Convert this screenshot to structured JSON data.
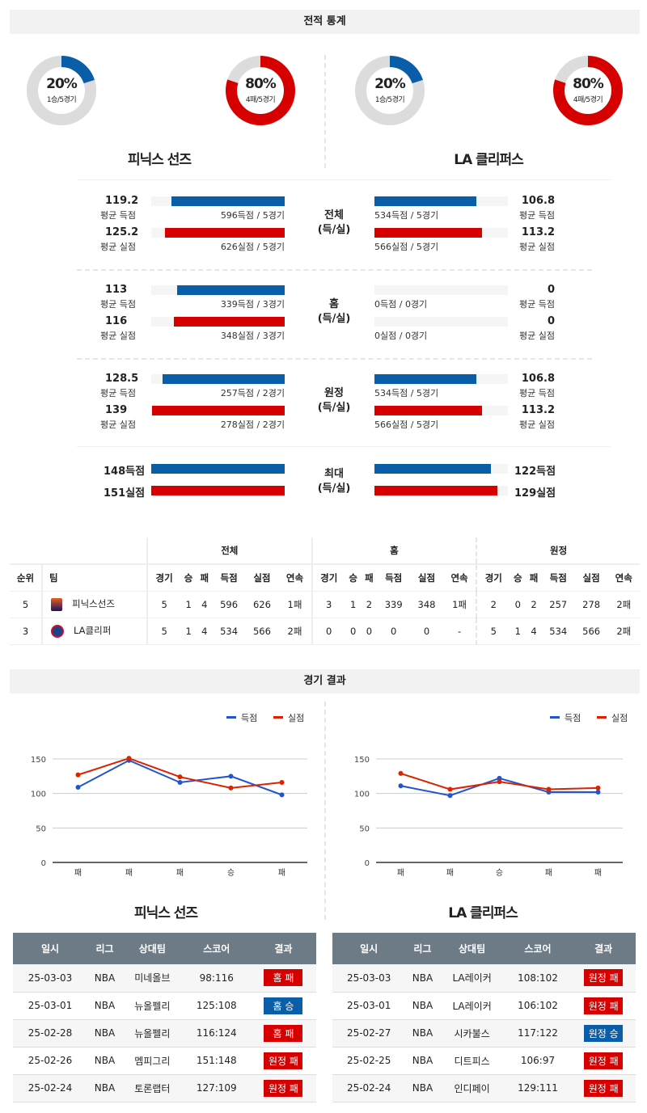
{
  "colors": {
    "score": "#0a5ea8",
    "lost": "#d60000",
    "track": "#dcdcdc",
    "header": "#6d7b87"
  },
  "section1": {
    "title": "전적 통계"
  },
  "teams": [
    {
      "name": "피닉스 선즈",
      "win": {
        "pct": "20%",
        "sub": "1승/5경기",
        "value": 20
      },
      "loss": {
        "pct": "80%",
        "sub": "4패/5경기",
        "value": 80
      }
    },
    {
      "name": "LA 클리퍼스",
      "win": {
        "pct": "20%",
        "sub": "1승/5경기",
        "value": 20
      },
      "loss": {
        "pct": "80%",
        "sub": "4패/5경기",
        "value": 80
      }
    }
  ],
  "stats": [
    {
      "center": [
        "전체",
        "(득/실)"
      ],
      "left": [
        {
          "val": "119.2",
          "lab": "평균 득점",
          "sub": "596득점 / 5경기",
          "v": 119.2
        },
        {
          "val": "125.2",
          "lab": "평균 실점",
          "sub": "626실점 / 5경기",
          "v": 125.2
        }
      ],
      "right": [
        {
          "val": "106.8",
          "lab": "평균 득점",
          "sub": "534득점 / 5경기",
          "v": 106.8
        },
        {
          "val": "113.2",
          "lab": "평균 실점",
          "sub": "566실점 / 5경기",
          "v": 113.2
        }
      ]
    },
    {
      "center": [
        "홈",
        "(득/실)"
      ],
      "left": [
        {
          "val": "113",
          "lab": "평균 득점",
          "sub": "339득점 / 3경기",
          "v": 113
        },
        {
          "val": "116",
          "lab": "평균 실점",
          "sub": "348실점 / 3경기",
          "v": 116
        }
      ],
      "right": [
        {
          "val": "0",
          "lab": "평균 득점",
          "sub": "0득점 / 0경기",
          "v": 0
        },
        {
          "val": "0",
          "lab": "평균 실점",
          "sub": "0실점 / 0경기",
          "v": 0
        }
      ]
    },
    {
      "center": [
        "원정",
        "(득/실)"
      ],
      "left": [
        {
          "val": "128.5",
          "lab": "평균 득점",
          "sub": "257득점 / 2경기",
          "v": 128.5
        },
        {
          "val": "139",
          "lab": "평균 실점",
          "sub": "278실점 / 2경기",
          "v": 139
        }
      ],
      "right": [
        {
          "val": "106.8",
          "lab": "평균 득점",
          "sub": "534득점 / 5경기",
          "v": 106.8
        },
        {
          "val": "113.2",
          "lab": "평균 실점",
          "sub": "566실점 / 5경기",
          "v": 113.2
        }
      ]
    }
  ],
  "max": {
    "center": [
      "최대",
      "(득/실)"
    ],
    "left": [
      {
        "val": "148득점",
        "v": 148
      },
      {
        "val": "151실점",
        "v": 151
      }
    ],
    "right": [
      {
        "val": "122득점",
        "v": 122
      },
      {
        "val": "129실점",
        "v": 129
      }
    ]
  },
  "standings": {
    "groups": [
      "전체",
      "홈",
      "원정"
    ],
    "headers": [
      "순위",
      "팀",
      "경기",
      "승",
      "패",
      "득점",
      "실점",
      "연속",
      "경기",
      "승",
      "패",
      "득점",
      "실점",
      "연속",
      "경기",
      "승",
      "패",
      "득점",
      "실점",
      "연속"
    ],
    "rows": [
      [
        "5",
        "피닉스선즈",
        "5",
        "1",
        "4",
        "596",
        "626",
        "1패",
        "3",
        "1",
        "2",
        "339",
        "348",
        "1패",
        "2",
        "0",
        "2",
        "257",
        "278",
        "2패"
      ],
      [
        "3",
        "LA클리퍼",
        "5",
        "1",
        "4",
        "534",
        "566",
        "2패",
        "0",
        "0",
        "0",
        "0",
        "0",
        "-",
        "5",
        "1",
        "4",
        "534",
        "566",
        "2패"
      ]
    ]
  },
  "section2": {
    "title": "경기 결과"
  },
  "chart_data": [
    {
      "type": "line",
      "categories": [
        "패",
        "패",
        "패",
        "승",
        "패"
      ],
      "ylim": [
        0,
        150
      ],
      "yticks": [
        0,
        50,
        100,
        150
      ],
      "legend": "top-right",
      "grid": true,
      "series": [
        {
          "name": "득점",
          "color": "#2255cc",
          "values": [
            109,
            148,
            116,
            125,
            98
          ]
        },
        {
          "name": "실점",
          "color": "#dd2200",
          "values": [
            127,
            151,
            124,
            108,
            116
          ]
        }
      ]
    },
    {
      "type": "line",
      "categories": [
        "패",
        "패",
        "승",
        "패",
        "패"
      ],
      "ylim": [
        0,
        150
      ],
      "yticks": [
        0,
        50,
        100,
        150
      ],
      "legend": "top-right",
      "grid": true,
      "series": [
        {
          "name": "득점",
          "color": "#2255cc",
          "values": [
            111,
            97,
            122,
            102,
            102
          ]
        },
        {
          "name": "실점",
          "color": "#dd2200",
          "values": [
            129,
            106,
            117,
            106,
            108
          ]
        }
      ]
    }
  ],
  "results": {
    "headers": [
      "일시",
      "리그",
      "상대팀",
      "스코어",
      "결과"
    ],
    "tables": [
      [
        [
          "25-03-03",
          "NBA",
          "미네올브",
          "98:116",
          "홈 패"
        ],
        [
          "25-03-01",
          "NBA",
          "뉴올펠리",
          "125:108",
          "홈 승"
        ],
        [
          "25-02-28",
          "NBA",
          "뉴올펠리",
          "116:124",
          "홈 패"
        ],
        [
          "25-02-26",
          "NBA",
          "멤피그리",
          "151:148",
          "원정 패"
        ],
        [
          "25-02-24",
          "NBA",
          "토론랩터",
          "127:109",
          "원정 패"
        ]
      ],
      [
        [
          "25-03-03",
          "NBA",
          "LA레이커",
          "108:102",
          "원정 패"
        ],
        [
          "25-03-01",
          "NBA",
          "LA레이커",
          "106:102",
          "원정 패"
        ],
        [
          "25-02-27",
          "NBA",
          "시카불스",
          "117:122",
          "원정 승"
        ],
        [
          "25-02-25",
          "NBA",
          "디트피스",
          "106:97",
          "원정 패"
        ],
        [
          "25-02-24",
          "NBA",
          "인디페이",
          "129:111",
          "원정 패"
        ]
      ]
    ]
  }
}
